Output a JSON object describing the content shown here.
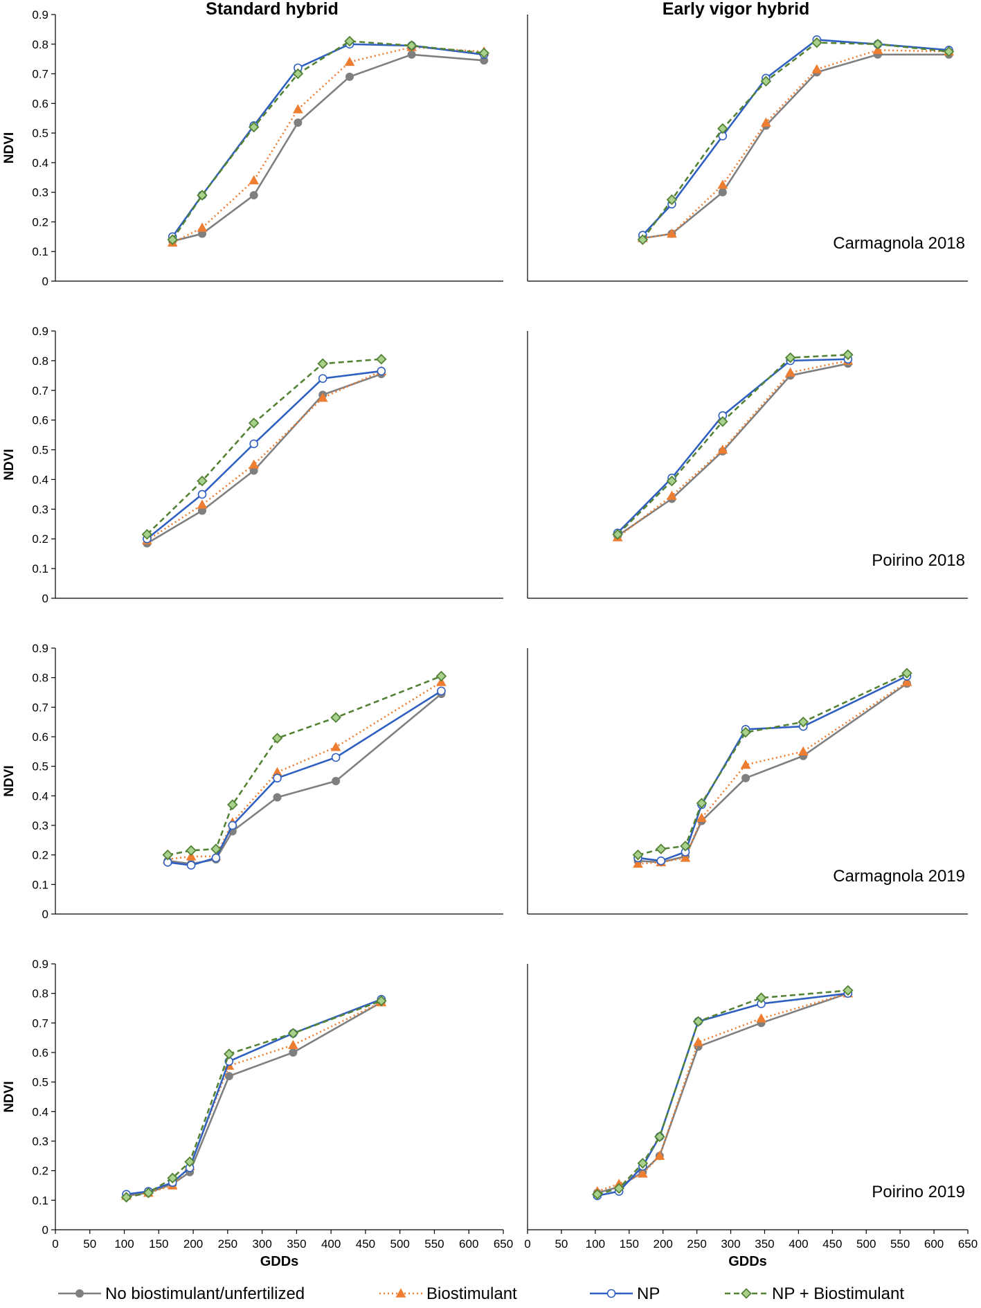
{
  "columns": [
    "Standard hybrid",
    "Early vigor hybrid"
  ],
  "legend": [
    {
      "key": "unfert",
      "label": "No biostimulant/unfertilized",
      "color": "#7f7f7f",
      "marker": "dot",
      "dash": "solid"
    },
    {
      "key": "bio",
      "label": "Biostimulant",
      "color": "#ed7d31",
      "marker": "triangle",
      "dash": "dotted"
    },
    {
      "key": "np",
      "label": "NP",
      "color": "#2e5fc1",
      "marker": "open-circle",
      "dash": "solid"
    },
    {
      "key": "npbio",
      "label": "NP + Biostimulant",
      "color": "#548235",
      "marker": "diamond",
      "dash": "dashed"
    }
  ],
  "chart_data": [
    {
      "type": "line",
      "id": "p00",
      "column": "Standard hybrid",
      "site": "",
      "ylabel": "NDVI",
      "xlabel": "",
      "ylim": [
        0,
        0.9
      ],
      "xlim": [
        0,
        650
      ],
      "yticks": [
        "0",
        "0.1",
        "0.2",
        "0.3",
        "0.4",
        "0.5",
        "0.6",
        "0.7",
        "0.8",
        "0.9"
      ],
      "xticks": [],
      "series": [
        {
          "key": "unfert",
          "x": [
            170,
            213,
            288,
            352,
            427,
            517,
            622
          ],
          "y": [
            0.135,
            0.16,
            0.29,
            0.535,
            0.69,
            0.765,
            0.745
          ]
        },
        {
          "key": "bio",
          "x": [
            170,
            213,
            288,
            352,
            427,
            517,
            622
          ],
          "y": [
            0.13,
            0.18,
            0.34,
            0.58,
            0.74,
            0.79,
            0.775
          ]
        },
        {
          "key": "np",
          "x": [
            170,
            213,
            288,
            352,
            427,
            517,
            622
          ],
          "y": [
            0.15,
            0.29,
            0.525,
            0.72,
            0.8,
            0.795,
            0.765
          ]
        },
        {
          "key": "npbio",
          "x": [
            170,
            213,
            288,
            352,
            427,
            517,
            622
          ],
          "y": [
            0.14,
            0.29,
            0.52,
            0.7,
            0.81,
            0.795,
            0.77
          ]
        }
      ]
    },
    {
      "type": "line",
      "id": "p01",
      "column": "Early vigor hybrid",
      "site": "Carmagnola 2018",
      "ylabel": "",
      "xlabel": "",
      "ylim": [
        0,
        0.9
      ],
      "xlim": [
        0,
        650
      ],
      "yticks": [],
      "xticks": [],
      "series": [
        {
          "key": "unfert",
          "x": [
            170,
            213,
            288,
            352,
            427,
            517,
            622
          ],
          "y": [
            0.145,
            0.16,
            0.3,
            0.525,
            0.705,
            0.765,
            0.765
          ]
        },
        {
          "key": "bio",
          "x": [
            170,
            213,
            288,
            352,
            427,
            517,
            622
          ],
          "y": [
            0.145,
            0.16,
            0.325,
            0.535,
            0.715,
            0.78,
            0.775
          ]
        },
        {
          "key": "np",
          "x": [
            170,
            213,
            288,
            352,
            427,
            517,
            622
          ],
          "y": [
            0.155,
            0.26,
            0.49,
            0.685,
            0.815,
            0.8,
            0.78
          ]
        },
        {
          "key": "npbio",
          "x": [
            170,
            213,
            288,
            352,
            427,
            517,
            622
          ],
          "y": [
            0.14,
            0.275,
            0.515,
            0.675,
            0.805,
            0.8,
            0.775
          ]
        }
      ]
    },
    {
      "type": "line",
      "id": "p10",
      "column": "Standard hybrid",
      "site": "",
      "ylabel": "NDVI",
      "xlabel": "",
      "ylim": [
        0,
        0.9
      ],
      "xlim": [
        0,
        650
      ],
      "yticks": [
        "0",
        "0.1",
        "0.2",
        "0.3",
        "0.4",
        "0.5",
        "0.6",
        "0.7",
        "0.8",
        "0.9"
      ],
      "xticks": [],
      "series": [
        {
          "key": "unfert",
          "x": [
            133,
            213,
            288,
            388,
            473
          ],
          "y": [
            0.185,
            0.295,
            0.43,
            0.685,
            0.755
          ]
        },
        {
          "key": "bio",
          "x": [
            133,
            213,
            288,
            388,
            473
          ],
          "y": [
            0.195,
            0.315,
            0.45,
            0.675,
            0.765
          ]
        },
        {
          "key": "np",
          "x": [
            133,
            213,
            288,
            388,
            473
          ],
          "y": [
            0.2,
            0.35,
            0.52,
            0.74,
            0.765
          ]
        },
        {
          "key": "npbio",
          "x": [
            133,
            213,
            288,
            388,
            473
          ],
          "y": [
            0.215,
            0.395,
            0.59,
            0.79,
            0.805
          ]
        }
      ]
    },
    {
      "type": "line",
      "id": "p11",
      "column": "Early vigor hybrid",
      "site": "Poirino 2018",
      "ylabel": "",
      "xlabel": "",
      "ylim": [
        0,
        0.9
      ],
      "xlim": [
        0,
        650
      ],
      "yticks": [],
      "xticks": [],
      "series": [
        {
          "key": "unfert",
          "x": [
            133,
            213,
            288,
            388,
            473
          ],
          "y": [
            0.21,
            0.335,
            0.495,
            0.75,
            0.79
          ]
        },
        {
          "key": "bio",
          "x": [
            133,
            213,
            288,
            388,
            473
          ],
          "y": [
            0.205,
            0.345,
            0.5,
            0.76,
            0.8
          ]
        },
        {
          "key": "np",
          "x": [
            133,
            213,
            288,
            388,
            473
          ],
          "y": [
            0.22,
            0.405,
            0.615,
            0.8,
            0.805
          ]
        },
        {
          "key": "npbio",
          "x": [
            133,
            213,
            288,
            388,
            473
          ],
          "y": [
            0.215,
            0.395,
            0.595,
            0.81,
            0.82
          ]
        }
      ]
    },
    {
      "type": "line",
      "id": "p20",
      "column": "Standard hybrid",
      "site": "",
      "ylabel": "NDVI",
      "xlabel": "",
      "ylim": [
        0,
        0.9
      ],
      "xlim": [
        0,
        650
      ],
      "yticks": [
        "0",
        "0.1",
        "0.2",
        "0.3",
        "0.4",
        "0.5",
        "0.6",
        "0.7",
        "0.8",
        "0.9"
      ],
      "xticks": [],
      "series": [
        {
          "key": "unfert",
          "x": [
            163,
            197,
            233,
            257,
            322,
            407,
            560
          ],
          "y": [
            0.18,
            0.17,
            0.185,
            0.28,
            0.395,
            0.45,
            0.745
          ]
        },
        {
          "key": "bio",
          "x": [
            163,
            197,
            233,
            257,
            322,
            407,
            560
          ],
          "y": [
            0.185,
            0.195,
            0.195,
            0.31,
            0.48,
            0.565,
            0.785
          ]
        },
        {
          "key": "np",
          "x": [
            163,
            197,
            233,
            257,
            322,
            407,
            560
          ],
          "y": [
            0.175,
            0.165,
            0.19,
            0.3,
            0.46,
            0.53,
            0.755
          ]
        },
        {
          "key": "npbio",
          "x": [
            163,
            197,
            233,
            257,
            322,
            407,
            560
          ],
          "y": [
            0.2,
            0.215,
            0.22,
            0.37,
            0.595,
            0.665,
            0.805
          ]
        }
      ]
    },
    {
      "type": "line",
      "id": "p21",
      "column": "Early vigor hybrid",
      "site": "Carmagnola 2019",
      "ylabel": "",
      "xlabel": "",
      "ylim": [
        0,
        0.9
      ],
      "xlim": [
        0,
        650
      ],
      "yticks": [],
      "xticks": [],
      "series": [
        {
          "key": "unfert",
          "x": [
            163,
            197,
            233,
            257,
            322,
            407,
            560
          ],
          "y": [
            0.18,
            0.175,
            0.195,
            0.315,
            0.46,
            0.535,
            0.78
          ]
        },
        {
          "key": "bio",
          "x": [
            163,
            197,
            233,
            257,
            322,
            407,
            560
          ],
          "y": [
            0.17,
            0.175,
            0.19,
            0.325,
            0.505,
            0.55,
            0.785
          ]
        },
        {
          "key": "np",
          "x": [
            163,
            197,
            233,
            257,
            322,
            407,
            560
          ],
          "y": [
            0.19,
            0.18,
            0.21,
            0.37,
            0.625,
            0.635,
            0.805
          ]
        },
        {
          "key": "npbio",
          "x": [
            163,
            197,
            233,
            257,
            322,
            407,
            560
          ],
          "y": [
            0.2,
            0.22,
            0.23,
            0.375,
            0.615,
            0.65,
            0.815
          ]
        }
      ]
    },
    {
      "type": "line",
      "id": "p30",
      "column": "Standard hybrid",
      "site": "",
      "ylabel": "NDVI",
      "xlabel": "GDDs",
      "ylim": [
        0,
        0.9
      ],
      "xlim": [
        0,
        650
      ],
      "yticks": [
        "0",
        "0.1",
        "0.2",
        "0.3",
        "0.4",
        "0.5",
        "0.6",
        "0.7",
        "0.8",
        "0.9"
      ],
      "xticks": [
        "0",
        "50",
        "100",
        "150",
        "200",
        "250",
        "300",
        "350",
        "400",
        "450",
        "500",
        "550",
        "600",
        "650"
      ],
      "series": [
        {
          "key": "unfert",
          "x": [
            103,
            135,
            170,
            195,
            252,
            345,
            473
          ],
          "y": [
            0.115,
            0.125,
            0.155,
            0.195,
            0.52,
            0.6,
            0.77
          ]
        },
        {
          "key": "bio",
          "x": [
            103,
            135,
            170,
            195,
            252,
            345,
            473
          ],
          "y": [
            0.115,
            0.125,
            0.15,
            0.215,
            0.555,
            0.625,
            0.77
          ]
        },
        {
          "key": "np",
          "x": [
            103,
            135,
            170,
            195,
            252,
            345,
            473
          ],
          "y": [
            0.12,
            0.13,
            0.16,
            0.21,
            0.57,
            0.665,
            0.78
          ]
        },
        {
          "key": "npbio",
          "x": [
            103,
            135,
            170,
            195,
            252,
            345,
            473
          ],
          "y": [
            0.11,
            0.125,
            0.175,
            0.23,
            0.595,
            0.665,
            0.775
          ]
        }
      ]
    },
    {
      "type": "line",
      "id": "p31",
      "column": "Early vigor hybrid",
      "site": "Poirino 2019",
      "ylabel": "",
      "xlabel": "GDDs",
      "ylim": [
        0,
        0.9
      ],
      "xlim": [
        0,
        650
      ],
      "yticks": [],
      "xticks": [
        "0",
        "50",
        "100",
        "150",
        "200",
        "250",
        "300",
        "350",
        "400",
        "450",
        "500",
        "550",
        "600",
        "650"
      ],
      "series": [
        {
          "key": "unfert",
          "x": [
            103,
            135,
            170,
            195,
            252,
            345,
            473
          ],
          "y": [
            0.125,
            0.145,
            0.195,
            0.25,
            0.62,
            0.7,
            0.8
          ]
        },
        {
          "key": "bio",
          "x": [
            103,
            135,
            170,
            195,
            252,
            345,
            473
          ],
          "y": [
            0.13,
            0.155,
            0.19,
            0.25,
            0.635,
            0.715,
            0.8
          ]
        },
        {
          "key": "np",
          "x": [
            103,
            135,
            170,
            195,
            252,
            345,
            473
          ],
          "y": [
            0.115,
            0.13,
            0.215,
            0.315,
            0.705,
            0.765,
            0.8
          ]
        },
        {
          "key": "npbio",
          "x": [
            103,
            135,
            170,
            195,
            252,
            345,
            473
          ],
          "y": [
            0.12,
            0.14,
            0.225,
            0.315,
            0.705,
            0.785,
            0.81
          ]
        }
      ]
    }
  ]
}
